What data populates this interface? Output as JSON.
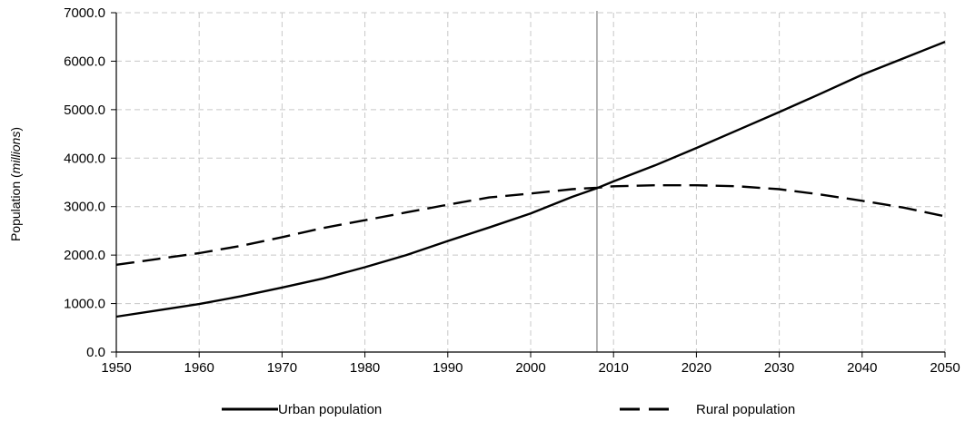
{
  "chart_data": {
    "type": "line",
    "ylabel_prefix": "Population (",
    "ylabel_unit": "millions",
    "ylabel_suffix": ")",
    "xlim": [
      1950,
      2050
    ],
    "ylim": [
      0,
      7000
    ],
    "x_ticks": [
      "1950",
      "1960",
      "1970",
      "1980",
      "1990",
      "2000",
      "2010",
      "2020",
      "2030",
      "2040",
      "2050"
    ],
    "y_ticks": [
      "0.0",
      "1000.0",
      "2000.0",
      "3000.0",
      "4000.0",
      "5000.0",
      "6000.0",
      "7000.0"
    ],
    "grid": true,
    "marker_year": 2008,
    "legend_position": "bottom",
    "x": [
      1950,
      1955,
      1960,
      1965,
      1970,
      1975,
      1980,
      1985,
      1990,
      1995,
      2000,
      2005,
      2008,
      2010,
      2015,
      2020,
      2025,
      2030,
      2035,
      2040,
      2045,
      2050
    ],
    "series": [
      {
        "name": "Urban population",
        "style": "solid",
        "values": [
          730,
          860,
          990,
          1150,
          1330,
          1520,
          1750,
          2000,
          2290,
          2570,
          2860,
          3200,
          3380,
          3520,
          3850,
          4210,
          4580,
          4950,
          5330,
          5720,
          6060,
          6400
        ]
      },
      {
        "name": "Rural population",
        "style": "dashed",
        "values": [
          1800,
          1920,
          2040,
          2190,
          2370,
          2560,
          2720,
          2880,
          3040,
          3190,
          3270,
          3360,
          3390,
          3420,
          3440,
          3440,
          3420,
          3360,
          3250,
          3120,
          2980,
          2800
        ]
      }
    ]
  },
  "colors": {
    "line": "#000000",
    "grid": "#c8c8c8",
    "marker": "#808080"
  }
}
